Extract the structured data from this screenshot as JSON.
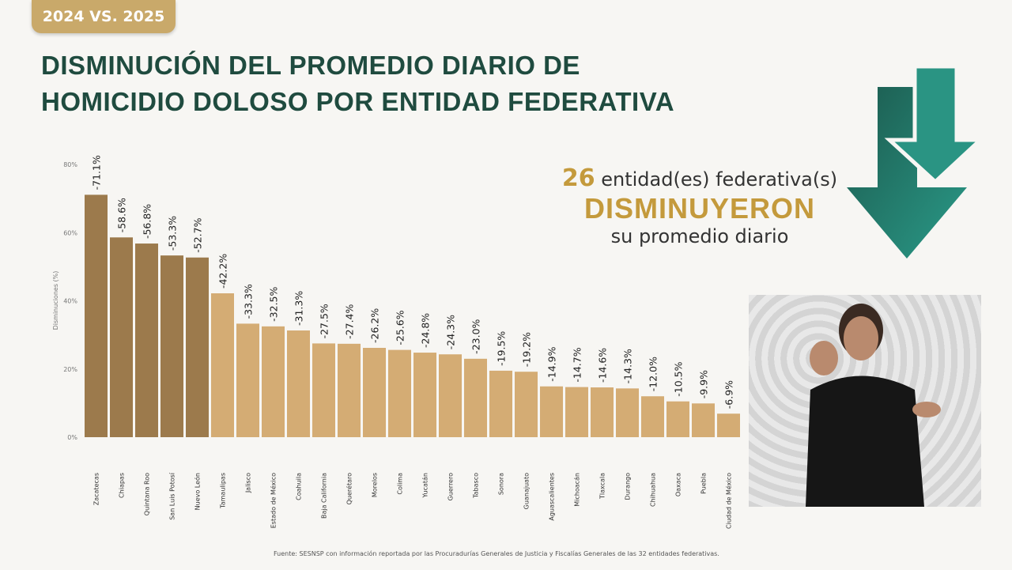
{
  "badge": "2024 VS. 2025",
  "title_line1": "DISMINUCIÓN DEL PROMEDIO DIARIO DE",
  "title_line2": "HOMICIDIO DOLOSO POR ENTIDAD FEDERATIVA",
  "callout": {
    "number": "26",
    "text1": "entidad(es) federativa(s)",
    "text2": "DISMINUYERON",
    "text3": "su promedio diario"
  },
  "source": "Fuente: SESNSP con información reportada por las Procuradurías Generales de Justicia y Fiscalías Generales de las 32 entidades federativas.",
  "colors": {
    "top5": "#9c7a4c",
    "rest": "#d4ac74",
    "title": "#1f4b3f",
    "accent": "#c49a3c",
    "arrow": "#1f6b5e"
  },
  "icons": [
    "down-arrow-icon"
  ],
  "chart_data": {
    "type": "bar",
    "ylabel": "Disminuciones (%)",
    "ylim": [
      0,
      80
    ],
    "yticks": [
      "0%",
      "20%",
      "40%",
      "60%",
      "80%"
    ],
    "categories": [
      "Zacatecas",
      "Chiapas",
      "Quintana Roo",
      "San Luis Potosí",
      "Nuevo León",
      "Tamaulipas",
      "Jalisco",
      "Estado de México",
      "Coahuila",
      "Baja California",
      "Querétaro",
      "Morelos",
      "Colima",
      "Yucatán",
      "Guerrero",
      "Tabasco",
      "Sonora",
      "Guanajuato",
      "Aguascalientes",
      "Michoacán",
      "Tlaxcala",
      "Durango",
      "Chihuahua",
      "Oaxaca",
      "Puebla",
      "Ciudad de México"
    ],
    "values": [
      71.1,
      58.6,
      56.8,
      53.3,
      52.7,
      42.2,
      33.3,
      32.5,
      31.3,
      27.5,
      27.4,
      26.2,
      25.6,
      24.8,
      24.3,
      23.0,
      19.5,
      19.2,
      14.9,
      14.7,
      14.6,
      14.3,
      12.0,
      10.5,
      9.9,
      6.9
    ],
    "labels": [
      "-71.1%",
      "-58.6%",
      "-56.8%",
      "-53.3%",
      "-52.7%",
      "-42.2%",
      "-33.3%",
      "-32.5%",
      "-31.3%",
      "-27.5%",
      "-27.4%",
      "-26.2%",
      "-25.6%",
      "-24.8%",
      "-24.3%",
      "-23.0%",
      "-19.5%",
      "-19.2%",
      "-14.9%",
      "-14.7%",
      "-14.6%",
      "-14.3%",
      "-12.0%",
      "-10.5%",
      "-9.9%",
      "-6.9%"
    ]
  }
}
